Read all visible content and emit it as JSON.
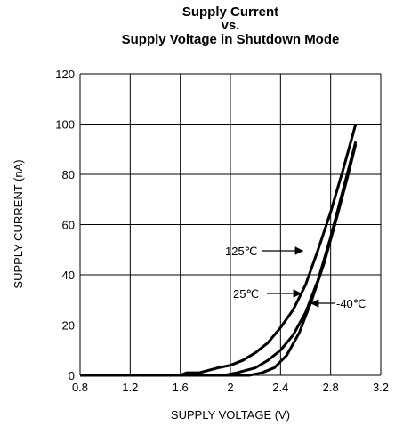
{
  "chart_data": {
    "type": "line",
    "title": [
      "Supply Current",
      "vs.",
      "Supply Voltage in Shutdown Mode"
    ],
    "x_label": "SUPPLY VOLTAGE (V)",
    "y_label": "SUPPLY CURRENT (nA)",
    "xlim": [
      0.8,
      3.2
    ],
    "xticks": [
      0.8,
      1.2,
      1.6,
      2,
      2.4,
      2.8,
      3.2
    ],
    "ylim": [
      0,
      120
    ],
    "yticks": [
      0,
      20,
      40,
      60,
      80,
      100,
      120
    ],
    "grid": true,
    "series": [
      {
        "name": "125℃",
        "color": "#000000",
        "x": [
          0.8,
          1.6,
          1.65,
          1.75,
          1.9,
          2.0,
          2.1,
          2.2,
          2.3,
          2.4,
          2.5,
          2.6,
          2.7,
          2.8,
          2.9,
          3.0
        ],
        "values": [
          0,
          0,
          1,
          1,
          3,
          4,
          6,
          9,
          13,
          19,
          26,
          36,
          50,
          65,
          82,
          100
        ]
      },
      {
        "name": "25℃",
        "color": "#000000",
        "x": [
          0.8,
          1.95,
          2.05,
          2.2,
          2.3,
          2.4,
          2.5,
          2.6,
          2.7,
          2.8,
          2.9,
          3.0
        ],
        "values": [
          0,
          0,
          1,
          3,
          6,
          10,
          16,
          25,
          38,
          55,
          74,
          93
        ]
      },
      {
        "name": "-40℃",
        "color": "#000000",
        "x": [
          0.8,
          2.15,
          2.25,
          2.35,
          2.45,
          2.55,
          2.65,
          2.75,
          2.85,
          2.93,
          3.0
        ],
        "values": [
          0,
          0,
          1,
          3,
          8,
          17,
          30,
          45,
          63,
          78,
          92
        ]
      }
    ],
    "annotations": [
      "125℃",
      "25℃",
      "-40℃"
    ]
  }
}
